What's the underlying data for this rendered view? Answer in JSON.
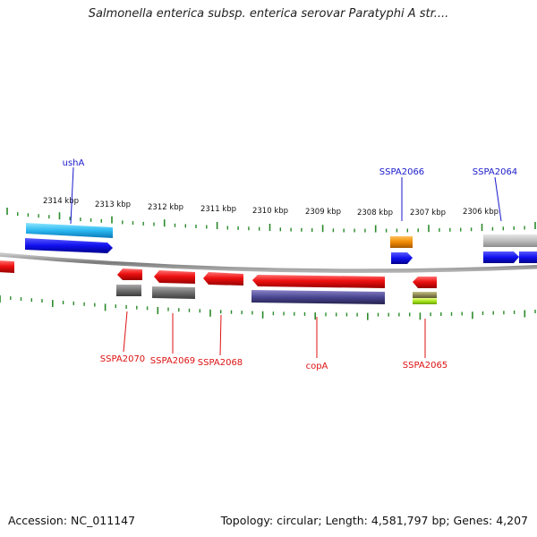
{
  "title": "Salmonella enterica subsp. enterica serovar Paratyphi A str....",
  "footer": {
    "accession": "Accession: NC_011147",
    "topology": "Topology: circular; Length: 4,581,797 bp; Genes: 4,207"
  },
  "colors": {
    "backbone": "#8a8a8a",
    "ticks": "#2a8a2a",
    "upper_label": "#1a1acc",
    "lower_label": "#dd1111",
    "forward_gene": "#1010ee",
    "reverse_gene": "#ee1111"
  },
  "scale_labels": [
    "2314 kbp",
    "2313 kbp",
    "2312 kbp",
    "2311 kbp",
    "2310 kbp",
    "2309 kbp",
    "2308 kbp",
    "2307 kbp",
    "2306 kbp"
  ],
  "gene_labels_top": [
    "ushA",
    "SSPA2066",
    "SSPA2064"
  ],
  "gene_labels_bottom": [
    "SSPA2070",
    "SSPA2069",
    "SSPA2068",
    "copA",
    "SSPA2065"
  ]
}
